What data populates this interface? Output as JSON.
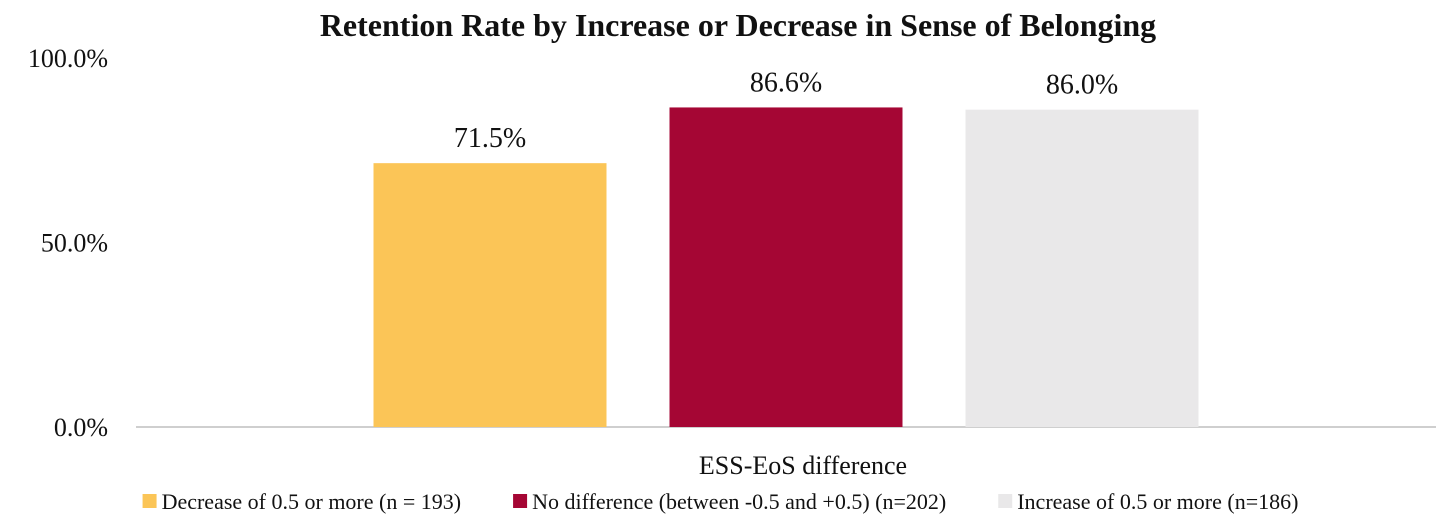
{
  "chart_data": {
    "type": "bar",
    "title": "Retention Rate by Increase or Decrease in Sense of Belonging",
    "xlabel": "ESS-EoS difference",
    "ylabel": "",
    "categories": [
      "ESS-EoS difference"
    ],
    "ylim": [
      0,
      100
    ],
    "yticks": [
      {
        "value": 0,
        "label": "0.0%"
      },
      {
        "value": 50,
        "label": "50.0%"
      },
      {
        "value": 100,
        "label": "100.0%"
      }
    ],
    "grid": false,
    "legend_position": "bottom",
    "series": [
      {
        "name": "Decrease of 0.5 or more (n = 193)",
        "values": [
          71.5
        ],
        "label": "71.5%",
        "color": "#FBC557"
      },
      {
        "name": "No difference (between -0.5 and +0.5) (n=202)",
        "values": [
          86.6
        ],
        "label": "86.6%",
        "color": "#A50634"
      },
      {
        "name": "Increase of 0.5 or more (n=186)",
        "values": [
          86.0
        ],
        "label": "86.0%",
        "color": "#E9E8E9"
      }
    ],
    "axis_color": "#BFBFBF"
  }
}
